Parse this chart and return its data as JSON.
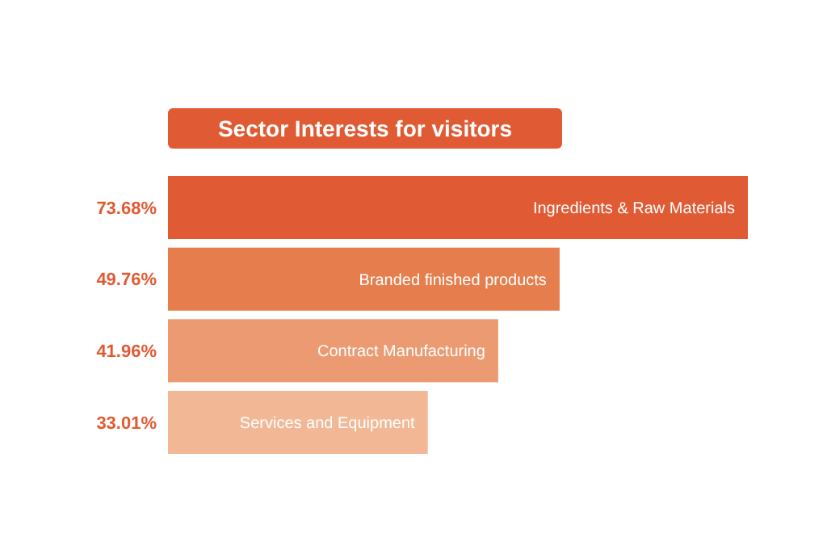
{
  "chart_data": {
    "type": "bar",
    "orientation": "horizontal",
    "title": "Sector Interests for visitors",
    "categories": [
      "Ingredients & Raw Materials",
      "Branded finished products",
      "Contract Manufacturing",
      "Services and Equipment"
    ],
    "values": [
      73.68,
      49.76,
      41.96,
      33.01
    ],
    "value_labels": [
      "73.68%",
      "49.76%",
      "41.96%",
      "33.01%"
    ],
    "colors": [
      "#e05a33",
      "#e57d4c",
      "#eb9a72",
      "#f2b896"
    ]
  }
}
